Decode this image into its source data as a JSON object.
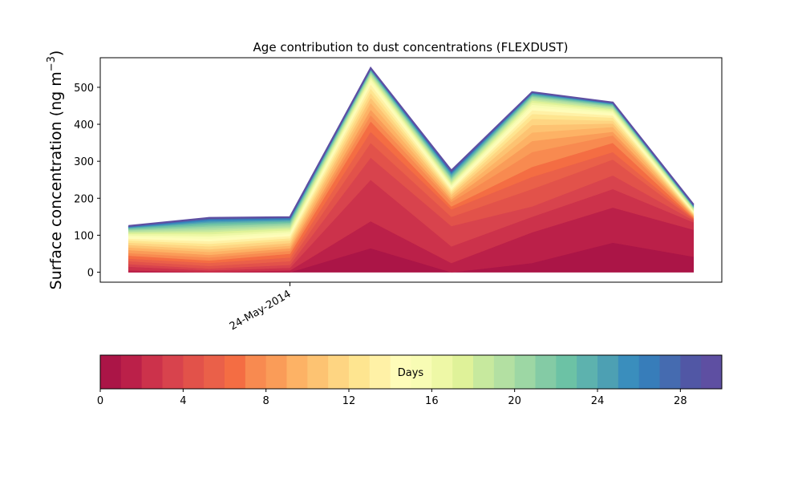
{
  "chart_data": {
    "type": "area",
    "title": "Age contribution to dust concentrations (FLEXDUST)",
    "ylabel": "Surface concentration (ng m",
    "ylabel_sup": "−3",
    "ylabel_close": ")",
    "xlabel": "",
    "x": [
      0,
      1,
      2,
      3,
      4,
      5,
      6,
      7
    ],
    "x_tick_label": "24-May-2014",
    "x_tick_position": 2,
    "xlim": [
      -0.35,
      7.35
    ],
    "yticks": [
      0,
      100,
      200,
      300,
      400,
      500
    ],
    "ylim": [
      -27,
      580
    ],
    "totals": [
      125,
      147,
      149,
      552,
      275,
      487,
      459,
      183
    ],
    "bands_note_days": "0-29 by 1 day",
    "cumulative_by_day": [
      [
        0,
        0,
        0,
        65,
        0,
        25,
        80,
        42
      ],
      [
        5,
        0,
        5,
        138,
        25,
        108,
        175,
        115
      ],
      [
        15,
        5,
        12,
        250,
        70,
        150,
        225,
        135
      ],
      [
        22,
        10,
        20,
        310,
        125,
        178,
        262,
        140
      ],
      [
        30,
        17,
        30,
        350,
        150,
        225,
        305,
        143
      ],
      [
        37,
        25,
        40,
        380,
        170,
        258,
        325,
        145
      ],
      [
        45,
        32,
        50,
        408,
        178,
        285,
        350,
        147
      ],
      [
        52,
        40,
        58,
        425,
        190,
        325,
        370,
        150
      ],
      [
        60,
        47,
        65,
        440,
        197,
        355,
        380,
        152
      ],
      [
        67,
        55,
        72,
        458,
        203,
        378,
        393,
        154
      ],
      [
        74,
        62,
        79,
        472,
        210,
        398,
        402,
        156
      ],
      [
        80,
        70,
        86,
        485,
        215,
        415,
        410,
        158
      ],
      [
        86,
        77,
        92,
        497,
        220,
        428,
        418,
        160
      ],
      [
        91,
        84,
        98,
        508,
        225,
        438,
        424,
        162
      ],
      [
        96,
        91,
        104,
        516,
        230,
        446,
        430,
        164
      ],
      [
        100,
        97,
        109,
        522,
        235,
        453,
        434,
        166
      ],
      [
        104,
        103,
        114,
        527,
        239,
        459,
        438,
        168
      ],
      [
        107,
        109,
        119,
        531,
        243,
        464,
        441,
        170
      ],
      [
        110,
        114,
        123,
        535,
        247,
        468,
        444,
        172
      ],
      [
        113,
        119,
        127,
        538,
        251,
        472,
        447,
        174
      ],
      [
        115,
        124,
        131,
        541,
        254,
        475,
        449,
        175
      ],
      [
        117,
        128,
        134,
        543,
        257,
        477,
        451,
        176
      ],
      [
        119,
        132,
        137,
        545,
        260,
        479,
        453,
        177
      ],
      [
        120,
        135,
        140,
        547,
        263,
        481,
        454,
        178
      ],
      [
        121,
        138,
        142,
        548,
        266,
        483,
        455,
        179
      ],
      [
        122,
        141,
        144,
        549,
        268,
        484,
        456,
        180
      ],
      [
        123,
        143,
        146,
        550,
        270,
        485,
        457,
        181
      ],
      [
        124,
        145,
        147,
        551,
        272,
        486,
        458,
        182
      ],
      [
        124.5,
        146,
        148,
        551.5,
        274,
        486.5,
        458.5,
        182.5
      ],
      [
        125,
        147,
        149,
        552,
        275,
        487,
        459,
        183
      ]
    ],
    "colorbar": {
      "label": "Days",
      "min": 0,
      "max": 30,
      "ticks": [
        0,
        4,
        8,
        12,
        16,
        20,
        24,
        28
      ],
      "colors": [
        "#ab1547",
        "#bb2049",
        "#cc324b",
        "#d8434d",
        "#e2524a",
        "#ea6049",
        "#f46d43",
        "#f88a50",
        "#fa9c58",
        "#fdb265",
        "#fdc372",
        "#fed582",
        "#fee590",
        "#fff1a6",
        "#fefcb9",
        "#f8fcb4",
        "#eef8a6",
        "#dff299",
        "#c7e99e",
        "#b3e0a2",
        "#9dd7a4",
        "#84cba5",
        "#6cc2a5",
        "#5db2ae",
        "#4da0b3",
        "#3a8ebd",
        "#377dba",
        "#456bb0",
        "#5157a5",
        "#5e4fa2"
      ]
    }
  }
}
